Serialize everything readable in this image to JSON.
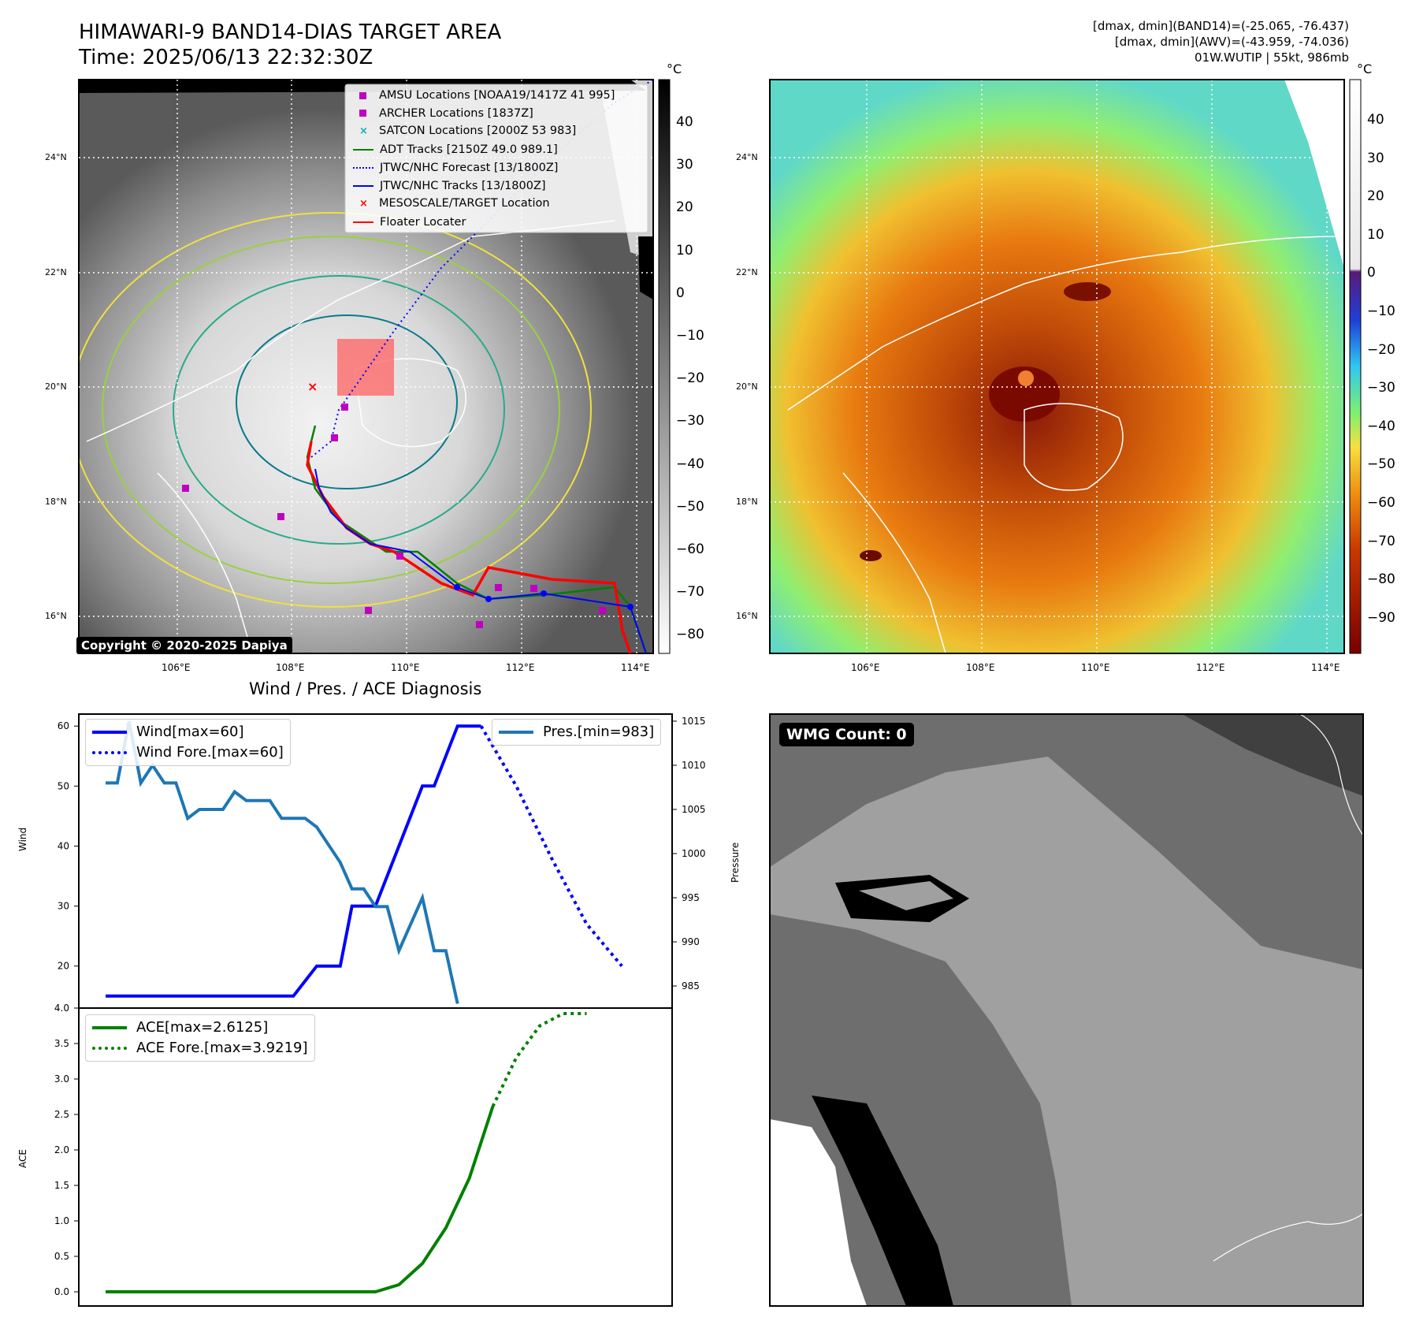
{
  "header": {
    "title_line1": "HIMAWARI-9 BAND14-DIAS TARGET AREA",
    "title_line2": "Time: 2025/06/13 22:32:30Z",
    "info_line1": "[dmax, dmin](BAND14)=(-25.065, -76.437)",
    "info_line2": "[dmax, dmin](AWV)=(-43.959, -74.036)",
    "info_line3": "01W.WUTIP | 55kt, 986mb"
  },
  "map": {
    "lon_ticks": [
      "106°E",
      "108°E",
      "110°E",
      "112°E",
      "114°E"
    ],
    "lat_ticks": [
      "24°N",
      "22°N",
      "20°N",
      "18°N",
      "16°N"
    ],
    "copyright": "Copyright © 2020-2025 Dapiya",
    "legend": [
      {
        "label": "AMSU Locations [NOAA19/1417Z 41 995]",
        "color": "#c000c0",
        "marker": "square"
      },
      {
        "label": "ARCHER Locations [1837Z]",
        "color": "#c000c0",
        "marker": "square"
      },
      {
        "label": "SATCON Locations [2000Z 53 983]",
        "color": "#00b4b4",
        "marker": "x"
      },
      {
        "label": "ADT Tracks [2150Z 49.0 989.1]",
        "color": "#008000",
        "marker": "line"
      },
      {
        "label": "JTWC/NHC Forecast [13/1800Z]",
        "color": "#0000ff",
        "marker": "dotted"
      },
      {
        "label": "JTWC/NHC Tracks [13/1800Z]",
        "color": "#0000ff",
        "marker": "line-dot"
      },
      {
        "label": "MESOSCALE/TARGET Location",
        "color": "#ff0000",
        "marker": "x"
      },
      {
        "label": "Floater Locater",
        "color": "#ff0000",
        "marker": "line"
      }
    ]
  },
  "colorbar_gray": {
    "unit": "°C",
    "ticks": [
      "40",
      "30",
      "20",
      "10",
      "0",
      "−10",
      "−20",
      "−30",
      "−40",
      "−50",
      "−60",
      "−70",
      "−80"
    ]
  },
  "colorbar_color": {
    "unit": "°C",
    "ticks": [
      "40",
      "30",
      "20",
      "10",
      "0",
      "−10",
      "−20",
      "−30",
      "−40",
      "−50",
      "−60",
      "−70",
      "−80",
      "−90"
    ]
  },
  "wind_panel": {
    "title": "Wind / Pres. / ACE Diagnosis",
    "ylabel_left": "Wind",
    "ylabel_right": "Pressure",
    "legend_wind": "Wind[max=60]",
    "legend_wind_fore": "Wind Fore.[max=60]",
    "legend_pres": "Pres.[min=983]"
  },
  "ace_panel": {
    "ylabel": "ACE",
    "legend_ace": "ACE[max=2.6125]",
    "legend_ace_fore": "ACE Fore.[max=3.9219]"
  },
  "wmg": {
    "label": "WMG Count: 0"
  },
  "chart_data": [
    {
      "type": "line",
      "name": "wind",
      "ylim": [
        13,
        62
      ],
      "yticks": [
        20,
        30,
        40,
        50,
        60
      ],
      "series": [
        {
          "name": "Wind[max=60]",
          "color": "#0000ff",
          "style": "solid",
          "x": [
            0,
            4,
            8,
            12,
            16,
            18,
            20,
            21,
            23,
            25,
            27,
            28,
            30,
            32
          ],
          "values": [
            15,
            15,
            15,
            15,
            15,
            20,
            20,
            30,
            30,
            40,
            50,
            50,
            60,
            60
          ]
        },
        {
          "name": "Wind Fore.[max=60]",
          "color": "#0000ff",
          "style": "dotted",
          "x": [
            32,
            35,
            38,
            41,
            44
          ],
          "values": [
            60,
            50,
            38,
            27,
            20
          ]
        }
      ]
    },
    {
      "type": "line",
      "name": "pressure",
      "ylim": [
        982.5,
        1015.8
      ],
      "yticks": [
        985,
        990,
        995,
        1000,
        1005,
        1010,
        1015
      ],
      "series": [
        {
          "name": "Pres.[min=983]",
          "color": "#1f77b4",
          "style": "solid",
          "x": [
            0,
            1,
            2,
            3,
            4,
            5,
            6,
            7,
            8,
            9,
            10,
            11,
            12,
            13,
            14,
            15,
            16,
            17,
            18,
            19,
            20,
            21,
            22,
            23,
            24,
            25,
            26,
            27,
            28,
            29,
            30
          ],
          "values": [
            1008,
            1008,
            1015,
            1008,
            1010,
            1008,
            1008,
            1004,
            1005,
            1005,
            1005,
            1007,
            1006,
            1006,
            1006,
            1004,
            1004,
            1004,
            1003,
            1001,
            999,
            996,
            996,
            994,
            994,
            989,
            992,
            995,
            989,
            989,
            983
          ]
        }
      ]
    },
    {
      "type": "line",
      "name": "ace",
      "ylim": [
        -0.2,
        4.0
      ],
      "yticks": [
        0.0,
        0.5,
        1.0,
        1.5,
        2.0,
        2.5,
        3.0,
        3.5,
        4.0
      ],
      "series": [
        {
          "name": "ACE[max=2.6125]",
          "color": "#008000",
          "style": "solid",
          "x": [
            0,
            5,
            10,
            15,
            20,
            23,
            25,
            27,
            29,
            31,
            33
          ],
          "values": [
            0,
            0,
            0,
            0,
            0,
            0,
            0.1,
            0.4,
            0.9,
            1.6,
            2.6125
          ]
        },
        {
          "name": "ACE Fore.[max=3.9219]",
          "color": "#008000",
          "style": "dotted",
          "x": [
            33,
            35,
            37,
            39,
            41
          ],
          "values": [
            2.6125,
            3.3,
            3.75,
            3.9219,
            3.9219
          ]
        }
      ]
    }
  ]
}
